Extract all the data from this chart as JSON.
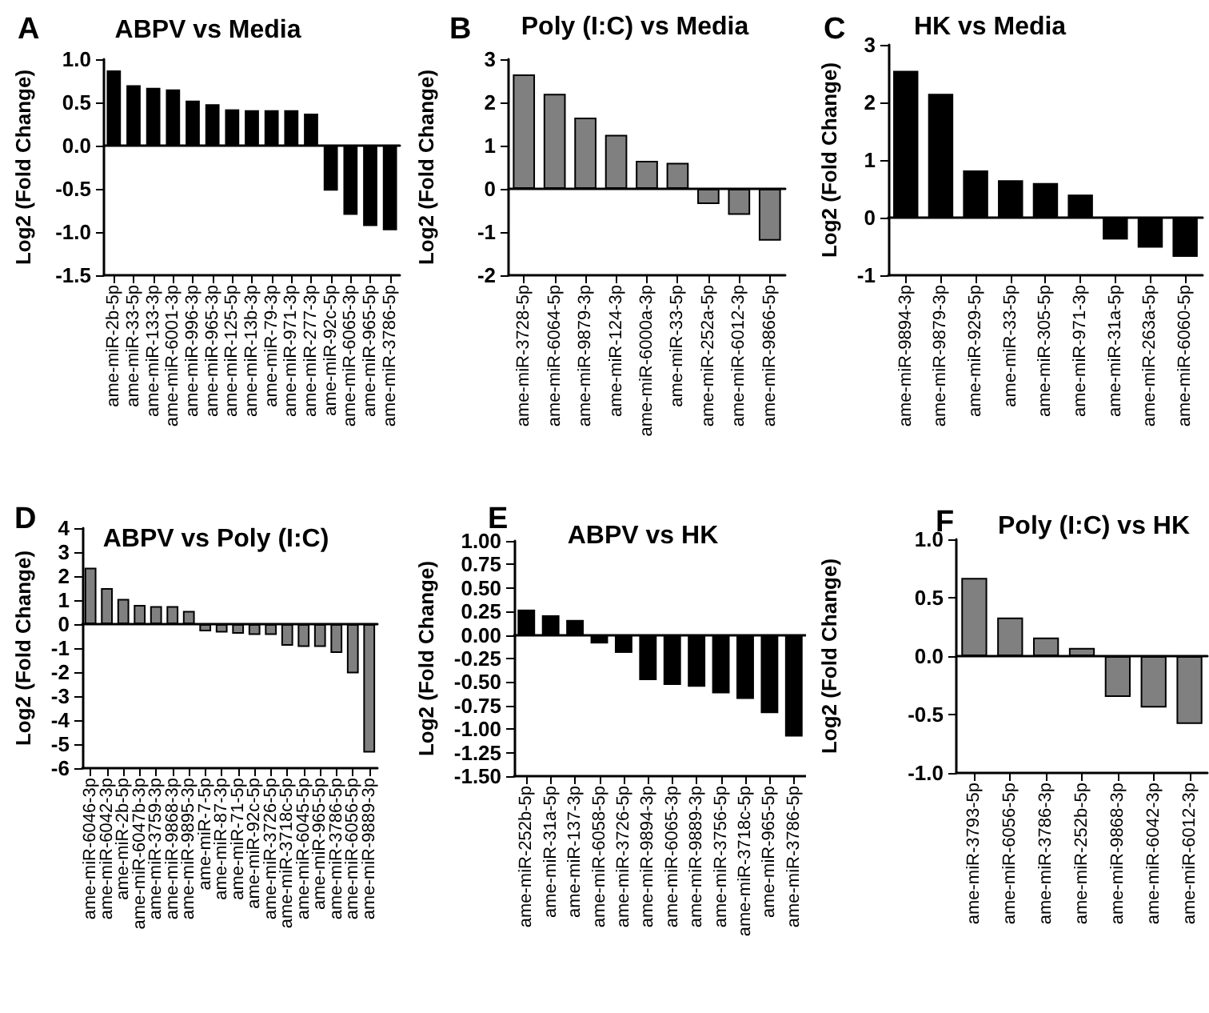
{
  "chart_data": [
    {
      "type": "bar",
      "title": "ABPV vs Media",
      "ylabel": "Log2 (Fold Change)",
      "annotations": [
        "A"
      ],
      "categories": [
        "ame-miR-2b-5p",
        "ame-miR-33-5p",
        "ame-miR-133-3p",
        "ame-miR-6001-3p",
        "ame-miR-996-3p",
        "ame-miR-965-3p",
        "ame-miR-125-5p",
        "ame-miR-13b-3p",
        "ame-miR-79-3p",
        "ame-miR-971-3p",
        "ame-miR-277-3p",
        "ame-miR-92c-5p",
        "ame-miR-6065-3p",
        "ame-miR-965-5p",
        "ame-miR-3786-5p"
      ],
      "values": [
        0.87,
        0.7,
        0.67,
        0.65,
        0.52,
        0.48,
        0.42,
        0.41,
        0.41,
        0.41,
        0.37,
        -0.52,
        -0.8,
        -0.93,
        -0.98
      ],
      "color": "#000000",
      "ylim": [
        -1.5,
        1.0
      ],
      "yticks": [
        {
          "value": -1.5,
          "label": "-1.5"
        },
        {
          "value": -1,
          "label": "-1.0"
        },
        {
          "value": -0.5,
          "label": "-0.5"
        },
        {
          "value": 0,
          "label": "0.0"
        },
        {
          "value": 0.5,
          "label": "0.5"
        },
        {
          "value": 1,
          "label": "1.0"
        }
      ]
    },
    {
      "type": "bar",
      "title": "Poly (I:C) vs Media",
      "ylabel": "Log2 (Fold Change)",
      "annotations": [
        "B"
      ],
      "categories": [
        "ame-miR-3728-5p",
        "ame-miR-6064-5p",
        "ame-miR-9879-3p",
        "ame-miR-124-3p",
        "ame-miR-6000a-3p",
        "ame-miR-33-5p",
        "ame-miR-252a-5p",
        "ame-miR-6012-3p",
        "ame-miR-9866-5p"
      ],
      "values": [
        2.65,
        2.2,
        1.65,
        1.25,
        0.65,
        0.6,
        -0.35,
        -0.6,
        -1.2
      ],
      "color": "#808080",
      "ylim": [
        -2,
        3
      ],
      "yticks": [
        -2,
        -1,
        0,
        1,
        2,
        3
      ]
    },
    {
      "type": "bar",
      "title": "HK vs Media",
      "ylabel": "Log2 (Fold Change)",
      "annotations": [
        "C"
      ],
      "categories": [
        "ame-miR-9894-3p",
        "ame-miR-9879-3p",
        "ame-miR-929-5p",
        "ame-miR-33-5p",
        "ame-miR-305-5p",
        "ame-miR-971-3p",
        "ame-miR-31a-5p",
        "ame-miR-263a-5p",
        "ame-miR-6060-5p"
      ],
      "values": [
        2.55,
        2.15,
        0.82,
        0.65,
        0.6,
        0.4,
        -0.38,
        -0.52,
        -0.68
      ],
      "color": "#000000",
      "ylim": [
        -1,
        3
      ],
      "yticks": [
        -1,
        0,
        1,
        2,
        3
      ]
    },
    {
      "type": "bar",
      "title": "ABPV vs Poly (I:C)",
      "ylabel": "Log2 (Fold Change)",
      "annotations": [
        "D"
      ],
      "categories": [
        "ame-miR-6046-3p",
        "ame-miR-6042-3p",
        "ame-miR-2b-5p",
        "ame-miR-6047b-3p",
        "ame-miR-3759-3p",
        "ame-miR-9868-3p",
        "ame-miR-9895-3p",
        "ame-miR-7-5p",
        "ame-miR-87-3p",
        "ame-miR-71-5p",
        "ame-miR-92c-5p",
        "ame-miR-3726-5p",
        "ame-miR-3718c-5p",
        "ame-miR-6045-5p",
        "ame-miR-965-5p",
        "ame-miR-3786-5p",
        "ame-miR-6056-5p",
        "ame-miR-9889-3p"
      ],
      "values": [
        2.35,
        1.5,
        1.05,
        0.8,
        0.75,
        0.75,
        0.55,
        -0.3,
        -0.35,
        -0.4,
        -0.45,
        -0.45,
        -0.9,
        -0.95,
        -0.95,
        -1.2,
        -2.05,
        -5.35
      ],
      "color": "#808080",
      "ylim": [
        -6,
        4
      ],
      "yticks": [
        -6,
        -5,
        -4,
        -3,
        -2,
        -1,
        0,
        1,
        2,
        3,
        4
      ]
    },
    {
      "type": "bar",
      "title": "ABPV vs HK",
      "ylabel": "Log2 (Fold Change)",
      "annotations": [
        "E"
      ],
      "categories": [
        "ame-miR-252b-5p",
        "ame-miR-31a-5p",
        "ame-miR-137-3p",
        "ame-miR-6058-5p",
        "ame-miR-3726-5p",
        "ame-miR-9894-3p",
        "ame-miR-6065-3p",
        "ame-miR-9889-3p",
        "ame-miR-3756-5p",
        "ame-miR-3718c-5p",
        "ame-miR-965-5p",
        "ame-miR-3786-5p"
      ],
      "values": [
        0.27,
        0.21,
        0.16,
        -0.09,
        -0.19,
        -0.48,
        -0.53,
        -0.55,
        -0.62,
        -0.68,
        -0.83,
        -1.08
      ],
      "color": "#000000",
      "ylim": [
        -1.5,
        1.0
      ],
      "yticks": [
        {
          "value": -1.5,
          "label": "-1.50"
        },
        {
          "value": -1.25,
          "label": "-1.25"
        },
        {
          "value": -1,
          "label": "-1.00"
        },
        {
          "value": -0.75,
          "label": "-0.75"
        },
        {
          "value": -0.5,
          "label": "-0.50"
        },
        {
          "value": -0.25,
          "label": "-0.25"
        },
        {
          "value": 0,
          "label": "0.00"
        },
        {
          "value": 0.25,
          "label": "0.25"
        },
        {
          "value": 0.5,
          "label": "0.50"
        },
        {
          "value": 0.75,
          "label": "0.75"
        },
        {
          "value": 1,
          "label": "1.00"
        }
      ]
    },
    {
      "type": "bar",
      "title": "Poly (I:C) vs HK",
      "ylabel": "Log2 (Fold Change)",
      "annotations": [
        "F"
      ],
      "categories": [
        "ame-miR-3793-5p",
        "ame-miR-6056-5p",
        "ame-miR-3786-3p",
        "ame-miR-252b-5p",
        "ame-miR-9868-3p",
        "ame-miR-6042-3p",
        "ame-miR-6012-3p"
      ],
      "values": [
        0.67,
        0.33,
        0.16,
        0.07,
        -0.35,
        -0.44,
        -0.58
      ],
      "color": "#808080",
      "ylim": [
        -1.0,
        1.0
      ],
      "yticks": [
        {
          "value": -1,
          "label": "-1.0"
        },
        {
          "value": -0.5,
          "label": "-0.5"
        },
        {
          "value": 0,
          "label": "0.0"
        },
        {
          "value": 0.5,
          "label": "0.5"
        },
        {
          "value": 1,
          "label": "1.0"
        }
      ]
    }
  ]
}
